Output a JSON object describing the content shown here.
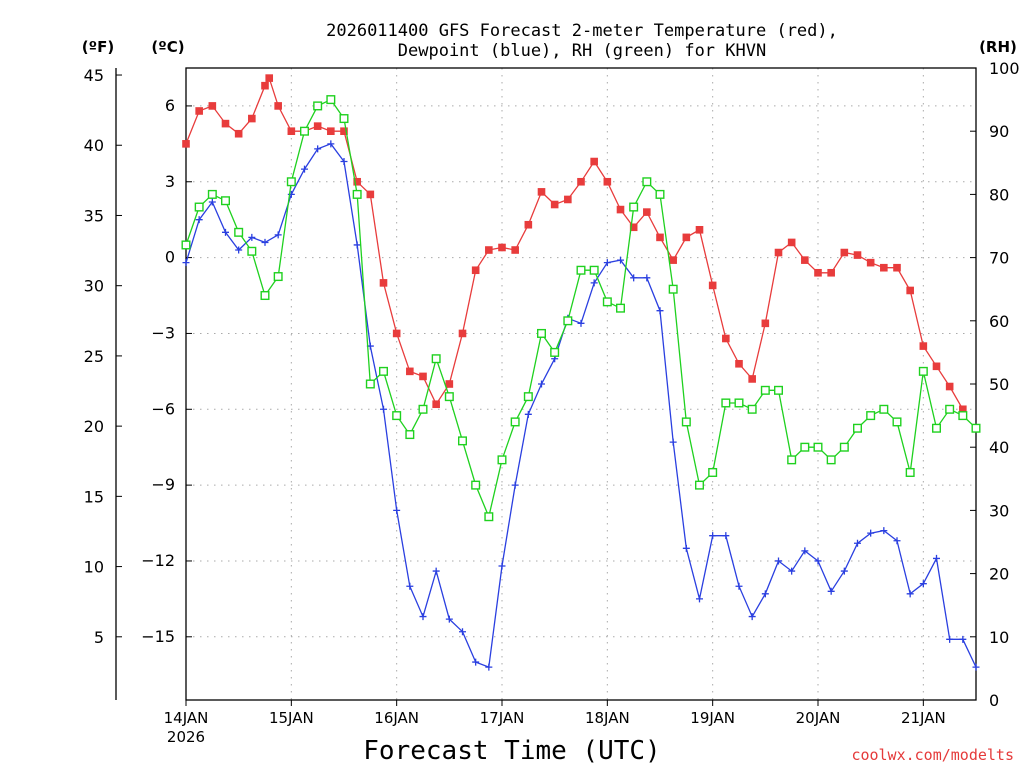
{
  "chart_data": {
    "type": "line",
    "title_lines": [
      "2026011400 GFS Forecast 2-meter Temperature (red),",
      "Dewpoint (blue), RH (green) for KHVN"
    ],
    "xlabel": "Forecast Time (UTC)",
    "credit": "coolwx.com/modelts",
    "x_range_days": [
      0,
      7.5
    ],
    "x_ticks": [
      {
        "day": 0,
        "label": "14JAN",
        "sub": "2026"
      },
      {
        "day": 1,
        "label": "15JAN",
        "sub": ""
      },
      {
        "day": 2,
        "label": "16JAN",
        "sub": ""
      },
      {
        "day": 3,
        "label": "17JAN",
        "sub": ""
      },
      {
        "day": 4,
        "label": "18JAN",
        "sub": ""
      },
      {
        "day": 5,
        "label": "19JAN",
        "sub": ""
      },
      {
        "day": 6,
        "label": "20JAN",
        "sub": ""
      },
      {
        "day": 7,
        "label": "21JAN",
        "sub": ""
      }
    ],
    "axes": {
      "fahrenheit": {
        "label": "(ºF)",
        "ticks": [
          5,
          10,
          15,
          20,
          25,
          30,
          35,
          40,
          45
        ]
      },
      "celsius": {
        "label": "(ºC)",
        "range": [
          -17.5,
          7.5
        ],
        "ticks": [
          6,
          3,
          0,
          -3,
          -6,
          -9,
          -12,
          -15
        ],
        "tick_labels": [
          "6",
          "3",
          "0",
          "−3",
          "−6",
          "−9",
          "−12",
          "−15"
        ]
      },
      "rh": {
        "label": "(RH)",
        "range": [
          0,
          100
        ],
        "ticks": [
          0,
          10,
          20,
          30,
          40,
          50,
          60,
          70,
          80,
          90,
          100
        ]
      }
    },
    "series": [
      {
        "name": "2-meter Temperature",
        "unit": "C",
        "color": "#e83c3c",
        "marker": "square-filled",
        "points": [
          [
            0,
            4.5
          ],
          [
            0.125,
            5.8
          ],
          [
            0.25,
            6
          ],
          [
            0.375,
            5.3
          ],
          [
            0.5,
            4.9
          ],
          [
            0.625,
            5.5
          ],
          [
            0.75,
            6.8
          ],
          [
            0.79,
            7.1
          ],
          [
            0.875,
            6
          ],
          [
            1,
            5
          ],
          [
            1.125,
            5
          ],
          [
            1.25,
            5.2
          ],
          [
            1.375,
            5
          ],
          [
            1.5,
            5
          ],
          [
            1.625,
            3
          ],
          [
            1.75,
            2.5
          ],
          [
            1.875,
            -1
          ],
          [
            2,
            -3
          ],
          [
            2.125,
            -4.5
          ],
          [
            2.25,
            -4.7
          ],
          [
            2.375,
            -5.8
          ],
          [
            2.5,
            -5
          ],
          [
            2.625,
            -3
          ],
          [
            2.75,
            -0.5
          ],
          [
            2.875,
            0.3
          ],
          [
            3,
            0.4
          ],
          [
            3.125,
            0.3
          ],
          [
            3.25,
            1.3
          ],
          [
            3.375,
            2.6
          ],
          [
            3.5,
            2.1
          ],
          [
            3.625,
            2.3
          ],
          [
            3.75,
            3
          ],
          [
            3.875,
            3.8
          ],
          [
            4,
            3
          ],
          [
            4.125,
            1.9
          ],
          [
            4.25,
            1.2
          ],
          [
            4.375,
            1.8
          ],
          [
            4.5,
            0.8
          ],
          [
            4.625,
            -0.1
          ],
          [
            4.75,
            0.8
          ],
          [
            4.875,
            1.1
          ],
          [
            5,
            -1.1
          ],
          [
            5.125,
            -3.2
          ],
          [
            5.25,
            -4.2
          ],
          [
            5.375,
            -4.8
          ],
          [
            5.5,
            -2.6
          ],
          [
            5.625,
            0.2
          ],
          [
            5.75,
            0.6
          ],
          [
            5.875,
            -0.1
          ],
          [
            6,
            -0.6
          ],
          [
            6.125,
            -0.6
          ],
          [
            6.25,
            0.2
          ],
          [
            6.375,
            0.1
          ],
          [
            6.5,
            -0.2
          ],
          [
            6.625,
            -0.4
          ],
          [
            6.75,
            -0.4
          ],
          [
            6.875,
            -1.3
          ],
          [
            7,
            -3.5
          ],
          [
            7.125,
            -4.3
          ],
          [
            7.25,
            -5.1
          ],
          [
            7.375,
            -6
          ]
        ]
      },
      {
        "name": "Dewpoint",
        "unit": "C",
        "color": "#2a3fe0",
        "marker": "plus",
        "points": [
          [
            0,
            -0.2
          ],
          [
            0.125,
            1.5
          ],
          [
            0.25,
            2.2
          ],
          [
            0.375,
            1
          ],
          [
            0.5,
            0.3
          ],
          [
            0.625,
            0.8
          ],
          [
            0.75,
            0.6
          ],
          [
            0.875,
            0.9
          ],
          [
            1,
            2.5
          ],
          [
            1.125,
            3.5
          ],
          [
            1.25,
            4.3
          ],
          [
            1.375,
            4.5
          ],
          [
            1.5,
            3.8
          ],
          [
            1.625,
            0.5
          ],
          [
            1.75,
            -3.5
          ],
          [
            1.875,
            -6
          ],
          [
            2,
            -10
          ],
          [
            2.125,
            -13
          ],
          [
            2.25,
            -14.2
          ],
          [
            2.375,
            -12.4
          ],
          [
            2.5,
            -14.3
          ],
          [
            2.625,
            -14.8
          ],
          [
            2.75,
            -16
          ],
          [
            2.875,
            -16.2
          ],
          [
            3,
            -12.2
          ],
          [
            3.125,
            -9
          ],
          [
            3.25,
            -6.2
          ],
          [
            3.375,
            -5
          ],
          [
            3.5,
            -4
          ],
          [
            3.625,
            -2.4
          ],
          [
            3.75,
            -2.6
          ],
          [
            3.875,
            -1
          ],
          [
            4,
            -0.2
          ],
          [
            4.125,
            -0.1
          ],
          [
            4.25,
            -0.8
          ],
          [
            4.375,
            -0.8
          ],
          [
            4.5,
            -2.1
          ],
          [
            4.625,
            -7.3
          ],
          [
            4.75,
            -11.5
          ],
          [
            4.875,
            -13.5
          ],
          [
            5,
            -11
          ],
          [
            5.125,
            -11
          ],
          [
            5.25,
            -13
          ],
          [
            5.375,
            -14.2
          ],
          [
            5.5,
            -13.3
          ],
          [
            5.625,
            -12
          ],
          [
            5.75,
            -12.4
          ],
          [
            5.875,
            -11.6
          ],
          [
            6,
            -12
          ],
          [
            6.125,
            -13.2
          ],
          [
            6.25,
            -12.4
          ],
          [
            6.375,
            -11.3
          ],
          [
            6.5,
            -10.9
          ],
          [
            6.625,
            -10.8
          ],
          [
            6.75,
            -11.2
          ],
          [
            6.875,
            -13.3
          ],
          [
            7,
            -12.9
          ],
          [
            7.125,
            -11.9
          ],
          [
            7.25,
            -15.1
          ],
          [
            7.375,
            -15.1
          ],
          [
            7.5,
            -16.2
          ]
        ]
      },
      {
        "name": "RH",
        "unit": "%",
        "color": "#1fd11f",
        "marker": "square-open",
        "points": [
          [
            0,
            72
          ],
          [
            0.125,
            78
          ],
          [
            0.25,
            80
          ],
          [
            0.375,
            79
          ],
          [
            0.5,
            74
          ],
          [
            0.625,
            71
          ],
          [
            0.75,
            64
          ],
          [
            0.875,
            67
          ],
          [
            1,
            82
          ],
          [
            1.125,
            90
          ],
          [
            1.25,
            94
          ],
          [
            1.375,
            95
          ],
          [
            1.5,
            92
          ],
          [
            1.625,
            80
          ],
          [
            1.75,
            50
          ],
          [
            1.875,
            52
          ],
          [
            2,
            45
          ],
          [
            2.125,
            42
          ],
          [
            2.25,
            46
          ],
          [
            2.375,
            54
          ],
          [
            2.5,
            48
          ],
          [
            2.625,
            41
          ],
          [
            2.75,
            34
          ],
          [
            2.875,
            29
          ],
          [
            3,
            38
          ],
          [
            3.125,
            44
          ],
          [
            3.25,
            48
          ],
          [
            3.375,
            58
          ],
          [
            3.5,
            55
          ],
          [
            3.625,
            60
          ],
          [
            3.75,
            68
          ],
          [
            3.875,
            68
          ],
          [
            4,
            63
          ],
          [
            4.125,
            62
          ],
          [
            4.25,
            78
          ],
          [
            4.375,
            82
          ],
          [
            4.5,
            80
          ],
          [
            4.625,
            65
          ],
          [
            4.75,
            44
          ],
          [
            4.875,
            34
          ],
          [
            5,
            36
          ],
          [
            5.125,
            47
          ],
          [
            5.25,
            47
          ],
          [
            5.375,
            46
          ],
          [
            5.5,
            49
          ],
          [
            5.625,
            49
          ],
          [
            5.75,
            38
          ],
          [
            5.875,
            40
          ],
          [
            6,
            40
          ],
          [
            6.125,
            38
          ],
          [
            6.25,
            40
          ],
          [
            6.375,
            43
          ],
          [
            6.5,
            45
          ],
          [
            6.625,
            46
          ],
          [
            6.75,
            44
          ],
          [
            6.875,
            36
          ],
          [
            7,
            52
          ],
          [
            7.125,
            43
          ],
          [
            7.25,
            46
          ],
          [
            7.375,
            45
          ],
          [
            7.5,
            43
          ]
        ]
      }
    ]
  }
}
